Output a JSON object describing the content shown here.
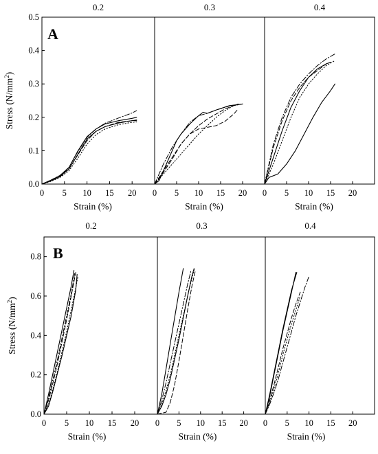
{
  "figure": {
    "panels": [
      {
        "letter": "A",
        "ylabel": "Stress (N/mm",
        "ylabel_superscript": "2",
        "ylabel_close": ")",
        "ylim": [
          0,
          0.5
        ],
        "yticks": [
          0,
          0.1,
          0.2,
          0.3,
          0.4,
          0.5
        ],
        "ytick_labels": [
          "0.0",
          "0.1",
          "0.2",
          "0.3",
          "0.4",
          "0.5"
        ]
      },
      {
        "letter": "B",
        "ylabel": "Stress (N/mm",
        "ylabel_superscript": "2",
        "ylabel_close": ")",
        "ylim": [
          0,
          0.9
        ],
        "yticks": [
          0,
          0.2,
          0.4,
          0.6,
          0.8
        ],
        "ytick_labels": [
          "0.0",
          "0.2",
          "0.4",
          "0.6",
          "0.8"
        ]
      }
    ]
  },
  "chart_data": [
    {
      "type": "line",
      "panel": "A",
      "title": "0.2",
      "xlabel": "Strain (%)",
      "xlim": [
        0,
        25
      ],
      "xticks": [
        0,
        5,
        10,
        15,
        20
      ],
      "ylim": [
        0,
        0.5
      ],
      "series": [
        {
          "style": "solid",
          "x": [
            0,
            2,
            4,
            6,
            8,
            10,
            12,
            14,
            17,
            20,
            21
          ],
          "y": [
            0,
            0.012,
            0.025,
            0.05,
            0.1,
            0.142,
            0.165,
            0.18,
            0.19,
            0.197,
            0.2
          ]
        },
        {
          "style": "solid",
          "x": [
            0,
            2,
            4,
            6,
            8,
            10,
            12,
            14,
            17,
            20,
            21
          ],
          "y": [
            0,
            0.01,
            0.022,
            0.045,
            0.09,
            0.135,
            0.158,
            0.172,
            0.183,
            0.19,
            0.192
          ]
        },
        {
          "style": "dash",
          "x": [
            0,
            2,
            4,
            6,
            8,
            10,
            12,
            14,
            17,
            20,
            21
          ],
          "y": [
            0,
            0.011,
            0.024,
            0.046,
            0.088,
            0.13,
            0.158,
            0.172,
            0.185,
            0.19,
            0.19
          ]
        },
        {
          "style": "dot",
          "x": [
            0,
            2,
            4,
            6,
            8,
            10,
            12,
            14,
            17,
            20,
            21
          ],
          "y": [
            0,
            0.008,
            0.02,
            0.04,
            0.078,
            0.12,
            0.148,
            0.165,
            0.178,
            0.185,
            0.186
          ]
        },
        {
          "style": "dashdot",
          "x": [
            0,
            2,
            4,
            6,
            8,
            10,
            12,
            14,
            17,
            20,
            21
          ],
          "y": [
            0,
            0.012,
            0.026,
            0.05,
            0.098,
            0.14,
            0.165,
            0.182,
            0.198,
            0.213,
            0.22
          ]
        }
      ]
    },
    {
      "type": "line",
      "panel": "A",
      "title": "0.3",
      "xlabel": "Strain (%)",
      "xlim": [
        0,
        25
      ],
      "xticks": [
        0,
        5,
        10,
        15,
        20
      ],
      "ylim": [
        0,
        0.5
      ],
      "series": [
        {
          "style": "solid",
          "x": [
            0,
            1,
            2,
            3,
            4,
            5,
            6,
            8,
            10,
            11,
            12,
            14,
            17,
            20
          ],
          "y": [
            0,
            0.01,
            0.04,
            0.07,
            0.1,
            0.13,
            0.15,
            0.18,
            0.205,
            0.215,
            0.212,
            0.222,
            0.235,
            0.24
          ]
        },
        {
          "style": "dash",
          "x": [
            0,
            2,
            4,
            6,
            8,
            10,
            12,
            14,
            16,
            18,
            19
          ],
          "y": [
            0,
            0.035,
            0.075,
            0.12,
            0.15,
            0.165,
            0.17,
            0.175,
            0.188,
            0.21,
            0.225
          ]
        },
        {
          "style": "dash",
          "x": [
            0,
            2,
            4,
            6,
            8,
            10,
            12,
            14,
            16,
            18,
            19
          ],
          "y": [
            0,
            0.04,
            0.08,
            0.12,
            0.15,
            0.175,
            0.195,
            0.21,
            0.225,
            0.235,
            0.24
          ]
        },
        {
          "style": "dot",
          "x": [
            0,
            2,
            4,
            6,
            8,
            10,
            12,
            14,
            16,
            18,
            20
          ],
          "y": [
            0,
            0.03,
            0.06,
            0.09,
            0.12,
            0.15,
            0.175,
            0.2,
            0.22,
            0.235,
            0.24
          ]
        },
        {
          "style": "dashdot",
          "x": [
            0,
            2,
            4,
            6,
            8,
            10,
            12,
            14,
            17,
            20
          ],
          "y": [
            0,
            0.06,
            0.11,
            0.15,
            0.185,
            0.205,
            0.212,
            0.222,
            0.234,
            0.24
          ]
        }
      ]
    },
    {
      "type": "line",
      "panel": "A",
      "title": "0.4",
      "xlabel": "Strain (%)",
      "xlim": [
        0,
        25
      ],
      "xticks": [
        0,
        5,
        10,
        15,
        20
      ],
      "ylim": [
        0,
        0.5
      ],
      "series": [
        {
          "style": "solid",
          "x": [
            0,
            1,
            3,
            5,
            7,
            9,
            11,
            13,
            15,
            16
          ],
          "y": [
            0,
            0.02,
            0.03,
            0.06,
            0.1,
            0.15,
            0.2,
            0.245,
            0.28,
            0.3
          ]
        },
        {
          "style": "dash",
          "x": [
            0,
            2,
            4,
            6,
            8,
            10,
            12,
            14,
            15
          ],
          "y": [
            0,
            0.11,
            0.19,
            0.25,
            0.29,
            0.32,
            0.34,
            0.36,
            0.365
          ]
        },
        {
          "style": "dot",
          "x": [
            0,
            2,
            4,
            6,
            8,
            10,
            12,
            14,
            16
          ],
          "y": [
            0,
            0.06,
            0.13,
            0.2,
            0.26,
            0.3,
            0.33,
            0.355,
            0.37
          ]
        },
        {
          "style": "dashdot",
          "x": [
            0,
            2,
            4,
            6,
            8,
            10,
            12,
            14,
            16
          ],
          "y": [
            0,
            0.12,
            0.2,
            0.26,
            0.3,
            0.33,
            0.355,
            0.375,
            0.39
          ]
        },
        {
          "style": "solid",
          "x": [
            0,
            2,
            4,
            6,
            8,
            10,
            12,
            14,
            15
          ],
          "y": [
            0,
            0.08,
            0.16,
            0.23,
            0.28,
            0.32,
            0.345,
            0.36,
            0.365
          ]
        }
      ]
    },
    {
      "type": "line",
      "panel": "B",
      "title": "0.2",
      "xlabel": "Strain (%)",
      "xlim": [
        0,
        25
      ],
      "xticks": [
        0,
        5,
        10,
        15,
        20
      ],
      "ylim": [
        0,
        0.9
      ],
      "series": [
        {
          "style": "solid",
          "x": [
            0,
            1,
            2,
            3,
            4,
            5,
            6,
            6.6
          ],
          "y": [
            0,
            0.1,
            0.21,
            0.32,
            0.43,
            0.54,
            0.65,
            0.73
          ]
        },
        {
          "style": "solid",
          "x": [
            0,
            1,
            2,
            3,
            4,
            5,
            6,
            7,
            7.3
          ],
          "y": [
            0,
            0.04,
            0.12,
            0.21,
            0.3,
            0.4,
            0.5,
            0.63,
            0.71
          ]
        },
        {
          "style": "dash",
          "x": [
            0,
            1,
            2,
            3,
            4,
            5,
            6,
            7
          ],
          "y": [
            0,
            0.07,
            0.16,
            0.26,
            0.37,
            0.48,
            0.6,
            0.72
          ]
        },
        {
          "style": "dot",
          "x": [
            0,
            1,
            2,
            3,
            4,
            5,
            6,
            7,
            7.5
          ],
          "y": [
            0,
            0.05,
            0.13,
            0.22,
            0.32,
            0.42,
            0.53,
            0.64,
            0.7
          ]
        },
        {
          "style": "dashdot",
          "x": [
            0,
            1,
            2,
            3,
            4,
            5,
            6,
            6.8
          ],
          "y": [
            0,
            0.08,
            0.18,
            0.28,
            0.39,
            0.5,
            0.61,
            0.72
          ]
        }
      ]
    },
    {
      "type": "line",
      "panel": "B",
      "title": "0.3",
      "xlabel": "Strain (%)",
      "xlim": [
        0,
        25
      ],
      "xticks": [
        0,
        5,
        10,
        15,
        20
      ],
      "ylim": [
        0,
        0.9
      ],
      "series": [
        {
          "style": "solid",
          "x": [
            0,
            1,
            2,
            3,
            4,
            5,
            6
          ],
          "y": [
            0,
            0.1,
            0.23,
            0.36,
            0.49,
            0.62,
            0.74
          ]
        },
        {
          "style": "dash",
          "x": [
            0,
            2,
            3,
            4,
            5,
            6,
            7,
            8,
            8.8
          ],
          "y": [
            0,
            0.01,
            0.06,
            0.15,
            0.27,
            0.4,
            0.53,
            0.65,
            0.73
          ]
        },
        {
          "style": "dot",
          "x": [
            0,
            1,
            2,
            3,
            4,
            5,
            6,
            7,
            8,
            8.6
          ],
          "y": [
            0,
            0.05,
            0.12,
            0.2,
            0.3,
            0.4,
            0.5,
            0.6,
            0.69,
            0.74
          ]
        },
        {
          "style": "dashdot",
          "x": [
            0,
            1,
            2,
            3,
            4,
            5,
            6,
            7,
            7.8
          ],
          "y": [
            0,
            0.07,
            0.16,
            0.26,
            0.36,
            0.46,
            0.56,
            0.66,
            0.73
          ]
        },
        {
          "style": "solid",
          "x": [
            0,
            1,
            2,
            3,
            4,
            5,
            6,
            7,
            8,
            8.5
          ],
          "y": [
            0,
            0.04,
            0.1,
            0.18,
            0.28,
            0.38,
            0.49,
            0.6,
            0.7,
            0.74
          ]
        }
      ]
    },
    {
      "type": "line",
      "panel": "B",
      "title": "0.4",
      "xlabel": "Strain (%)",
      "xlim": [
        0,
        25
      ],
      "xticks": [
        0,
        5,
        10,
        15,
        20
      ],
      "ylim": [
        0,
        0.9
      ],
      "series": [
        {
          "style": "solid",
          "x": [
            0,
            1,
            2,
            3,
            4,
            5,
            6,
            7
          ],
          "y": [
            0,
            0.09,
            0.2,
            0.31,
            0.42,
            0.52,
            0.62,
            0.72
          ]
        },
        {
          "style": "solid",
          "x": [
            0,
            1,
            2,
            3,
            4,
            5,
            6,
            7.2
          ],
          "y": [
            0,
            0.1,
            0.21,
            0.32,
            0.43,
            0.53,
            0.63,
            0.72
          ]
        },
        {
          "style": "dash",
          "x": [
            0,
            1,
            2,
            3,
            4,
            5,
            6,
            7,
            8
          ],
          "y": [
            0,
            0.07,
            0.15,
            0.24,
            0.33,
            0.41,
            0.49,
            0.56,
            0.62
          ]
        },
        {
          "style": "dot",
          "x": [
            0,
            1,
            2,
            3,
            4,
            5,
            6,
            7,
            8
          ],
          "y": [
            0,
            0.06,
            0.13,
            0.21,
            0.3,
            0.38,
            0.46,
            0.53,
            0.6
          ]
        },
        {
          "style": "dashdot",
          "x": [
            0,
            1,
            2,
            3,
            4,
            5,
            6,
            7,
            8,
            9,
            10
          ],
          "y": [
            0,
            0.05,
            0.11,
            0.18,
            0.26,
            0.34,
            0.42,
            0.5,
            0.57,
            0.64,
            0.7
          ]
        }
      ]
    }
  ]
}
